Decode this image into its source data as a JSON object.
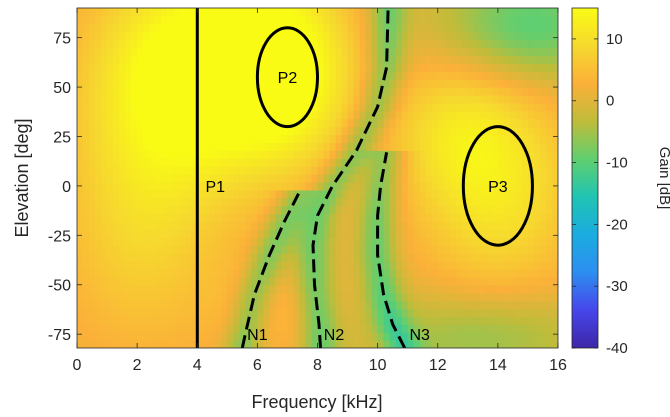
{
  "chart_data": {
    "type": "heatmap",
    "title": "",
    "xlabel": "Frequency [kHz]",
    "ylabel": "Elevation [deg]",
    "xlim": [
      0,
      16
    ],
    "ylim": [
      -82,
      90
    ],
    "x_ticks": [
      0,
      2,
      4,
      6,
      8,
      10,
      12,
      14,
      16
    ],
    "y_ticks": [
      75,
      50,
      25,
      0,
      -25,
      -50,
      -75
    ],
    "colorbar": {
      "label": "Gain [dB]",
      "range": [
        -40,
        15
      ],
      "ticks": [
        10,
        0,
        -10,
        -20,
        -30,
        -40
      ],
      "colormap": "parula",
      "colors": [
        "#3e26a8",
        "#4746eb",
        "#2d8ef0",
        "#1bace0",
        "#20c4b2",
        "#60cf70",
        "#bfbc3a",
        "#fbb039",
        "#f6d92e",
        "#f9fb15"
      ]
    },
    "lines": [
      {
        "name": "P1",
        "style": "solid",
        "points": [
          [
            4,
            -82
          ],
          [
            4,
            90
          ]
        ]
      },
      {
        "name": "N1",
        "style": "dashed",
        "points": [
          [
            5.5,
            -82
          ],
          [
            5.6,
            -75
          ],
          [
            5.9,
            -55
          ],
          [
            6.4,
            -35
          ],
          [
            6.9,
            -18
          ],
          [
            7.4,
            -3
          ]
        ]
      },
      {
        "name": "N2",
        "style": "dashed",
        "points": [
          [
            8.1,
            -82
          ],
          [
            8.05,
            -70
          ],
          [
            7.9,
            -50
          ],
          [
            7.85,
            -30
          ],
          [
            8.0,
            -15
          ],
          [
            8.5,
            0
          ],
          [
            9.3,
            18
          ],
          [
            10.0,
            40
          ],
          [
            10.3,
            60
          ],
          [
            10.35,
            90
          ]
        ]
      },
      {
        "name": "N3",
        "style": "dashed",
        "points": [
          [
            10.9,
            -82
          ],
          [
            10.5,
            -70
          ],
          [
            10.2,
            -55
          ],
          [
            10.0,
            -35
          ],
          [
            10.0,
            -15
          ],
          [
            10.1,
            0
          ],
          [
            10.3,
            17
          ]
        ]
      }
    ],
    "ellipses": [
      {
        "name": "P2",
        "cx": 7,
        "cy": 55,
        "rx": 1.0,
        "ry": 25
      },
      {
        "name": "P3",
        "cx": 14,
        "cy": 0,
        "rx": 1.15,
        "ry": 30
      }
    ],
    "annotations": [
      {
        "text": "P1",
        "x": 4.6,
        "y": 0
      },
      {
        "text": "P2",
        "x": 7,
        "y": 55
      },
      {
        "text": "P3",
        "x": 14,
        "y": 0
      },
      {
        "text": "N1",
        "x": 6.0,
        "y": -75
      },
      {
        "text": "N2",
        "x": 8.55,
        "y": -75
      },
      {
        "text": "N3",
        "x": 11.4,
        "y": -75
      }
    ],
    "field_features": [
      {
        "x": 3.0,
        "y": 40,
        "sx": 2.2,
        "sy": 45,
        "dB": 9
      },
      {
        "x": 5.0,
        "y": 65,
        "sx": 2.5,
        "sy": 35,
        "dB": 14
      },
      {
        "x": 7.0,
        "y": 55,
        "sx": 1.5,
        "sy": 35,
        "dB": 10
      },
      {
        "x": 2.0,
        "y": -30,
        "sx": 2.0,
        "sy": 45,
        "dB": 6
      },
      {
        "x": 14.0,
        "y": 0,
        "sx": 2.0,
        "sy": 40,
        "dB": 11
      },
      {
        "x": 12.5,
        "y": 30,
        "sx": 1.5,
        "sy": 25,
        "dB": 6
      },
      {
        "x": 15.0,
        "y": 80,
        "sx": 2.0,
        "sy": 20,
        "dB": -11
      },
      {
        "x": 13.5,
        "y": -75,
        "sx": 2.5,
        "sy": 15,
        "dB": -7
      },
      {
        "x": 6.5,
        "y": -65,
        "sx": 1.5,
        "sy": 20,
        "dB": 4
      }
    ]
  }
}
